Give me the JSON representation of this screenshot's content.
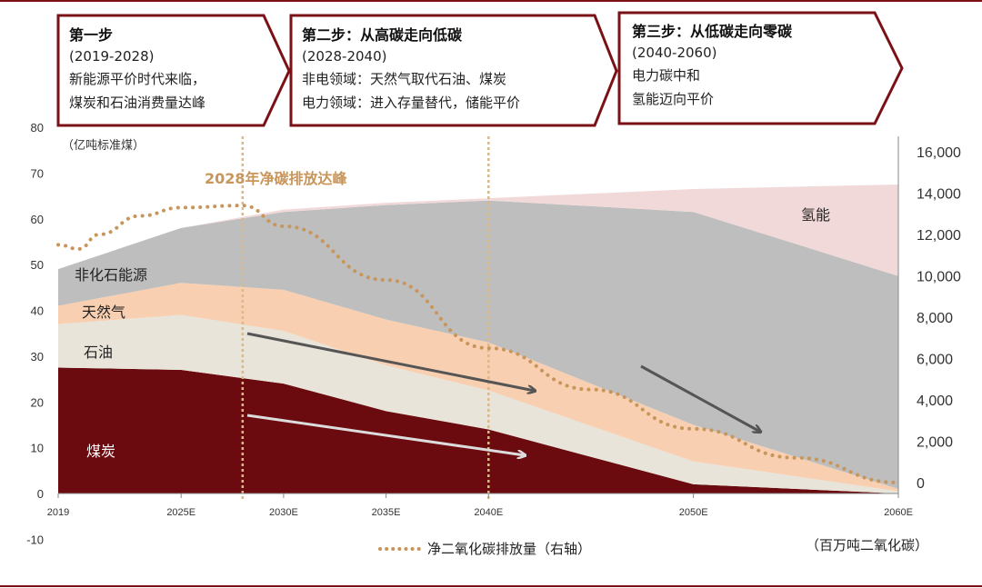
{
  "chart_data": {
    "type": "area",
    "x": [
      "2019",
      "2025E",
      "2030E",
      "2035E",
      "2040E",
      "2050E",
      "2060E"
    ],
    "x_positions": [
      2019,
      2025,
      2030,
      2035,
      2040,
      2050,
      2060
    ],
    "ylim": [
      -10,
      80
    ],
    "yticks": [
      -10,
      0,
      10,
      20,
      30,
      40,
      50,
      60,
      70,
      80
    ],
    "ylabel": "（亿吨标准煤）",
    "y2lim": [
      0,
      16000
    ],
    "y2ticks": [
      "0",
      "2,000",
      "4,000",
      "6,000",
      "8,000",
      "10,000",
      "12,000",
      "14,000",
      "16,000"
    ],
    "y2label": "（百万吨二氧化碳）",
    "series": [
      {
        "name": "煤炭",
        "color": "#6b0a0f",
        "values": [
          27.5,
          27,
          24,
          18,
          14,
          2,
          0
        ]
      },
      {
        "name": "石油",
        "color": "#e8e4d9",
        "values": [
          9.5,
          12,
          11.5,
          10,
          8.5,
          5,
          0.5
        ]
      },
      {
        "name": "天然气",
        "color": "#f8cfb0",
        "values": [
          4,
          7,
          9,
          10,
          10.5,
          8,
          0.5
        ]
      },
      {
        "name": "非化石能源",
        "color": "#bebebe",
        "values": [
          8,
          12,
          17,
          25,
          31,
          46.5,
          46.5
        ]
      },
      {
        "name": "氢能",
        "color": "#f2d9d9",
        "values": [
          0,
          0,
          0.5,
          0.5,
          0.5,
          5,
          20
        ]
      }
    ],
    "emissions_series": {
      "name": "净二氧化碳排放量（右轴）",
      "color": "#c8955a",
      "x": [
        2019,
        2020,
        2021,
        2023,
        2025,
        2028,
        2030,
        2035,
        2040,
        2045,
        2050,
        2055,
        2060
      ],
      "values": [
        11500,
        11300,
        12000,
        12900,
        13300,
        13400,
        12400,
        9800,
        6500,
        4500,
        2600,
        1200,
        0
      ]
    },
    "annotation": "2028年净碳排放达峰",
    "area_labels": {
      "coal": "煤炭",
      "oil": "石油",
      "gas": "天然气",
      "nonfossil": "非化石能源",
      "hydrogen": "氢能"
    },
    "phases": [
      {
        "title": "第一步",
        "period": "(2019-2028)",
        "lines": [
          "新能源平价时代来临，",
          "煤炭和石油消费量达峰"
        ]
      },
      {
        "title": "第二步：从高碳走向低碳",
        "period": "(2028-2040)",
        "lines": [
          "非电领域：天然气取代石油、煤炭",
          "电力领域：进入存量替代，储能平价"
        ]
      },
      {
        "title": "第三步：从低碳走向零碳",
        "period": "(2040-2060)",
        "lines": [
          "电力碳中和",
          "氢能迈向平价"
        ]
      }
    ],
    "phase_dividers": [
      2028,
      2040
    ],
    "colors": {
      "frame": "#7a1117",
      "divider": "#d9b98a",
      "arrow_dark": "#555555",
      "arrow_light": "#dcdcdc"
    }
  }
}
